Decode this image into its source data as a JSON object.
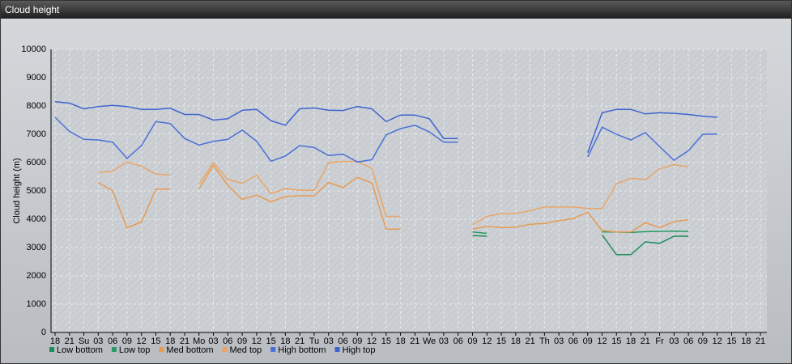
{
  "chart_data": {
    "type": "line",
    "title": "Cloud height",
    "y_label": "Cloud height (m)",
    "categories": [
      "18",
      "21",
      "Su",
      "03",
      "06",
      "09",
      "12",
      "15",
      "18",
      "21",
      "Mo",
      "03",
      "06",
      "09",
      "12",
      "15",
      "18",
      "21",
      "Tu",
      "03",
      "06",
      "09",
      "12",
      "15",
      "18",
      "21",
      "We",
      "03",
      "06",
      "09",
      "12",
      "15",
      "18",
      "21",
      "Th",
      "03",
      "06",
      "09",
      "12",
      "15",
      "18",
      "21",
      "Fr",
      "03",
      "06",
      "09",
      "12",
      "15",
      "18",
      "21"
    ],
    "ylim": [
      0,
      10000
    ],
    "yticks": [
      0,
      1000,
      2000,
      3000,
      4000,
      5000,
      6000,
      7000,
      8000,
      9000,
      10000
    ],
    "grid": true,
    "series": [
      {
        "name": "Low bottom",
        "color": "#1f8a5a",
        "values": [
          null,
          null,
          null,
          null,
          null,
          null,
          null,
          null,
          null,
          null,
          null,
          null,
          null,
          null,
          null,
          null,
          null,
          null,
          null,
          null,
          null,
          null,
          null,
          null,
          null,
          null,
          null,
          null,
          null,
          3420,
          3400,
          null,
          null,
          null,
          null,
          null,
          null,
          null,
          3450,
          2750,
          2750,
          3200,
          3150,
          3400,
          3400,
          null,
          null,
          null,
          null,
          null
        ]
      },
      {
        "name": "Low top",
        "color": "#2a9a66",
        "values": [
          null,
          null,
          null,
          null,
          null,
          null,
          null,
          null,
          null,
          null,
          null,
          null,
          null,
          null,
          null,
          null,
          null,
          null,
          null,
          null,
          null,
          null,
          null,
          null,
          null,
          null,
          null,
          null,
          null,
          3550,
          3500,
          null,
          null,
          null,
          null,
          null,
          null,
          null,
          3550,
          3550,
          3530,
          3560,
          3570,
          3580,
          3570,
          null,
          null,
          null,
          null,
          null
        ]
      },
      {
        "name": "Med bottom",
        "color": "#e89a50",
        "values": [
          null,
          null,
          null,
          5300,
          5000,
          3700,
          3900,
          5060,
          5060,
          null,
          5080,
          5900,
          5200,
          4700,
          4850,
          4620,
          4800,
          4830,
          4830,
          5300,
          5120,
          5480,
          5280,
          3650,
          3650,
          null,
          null,
          null,
          null,
          3650,
          3750,
          3700,
          3720,
          3820,
          3850,
          3950,
          4020,
          4250,
          3600,
          3550,
          3550,
          3880,
          3700,
          3920,
          3980,
          null,
          null,
          null,
          null,
          null
        ]
      },
      {
        "name": "Med top",
        "color": "#eaa468",
        "values": [
          null,
          null,
          null,
          5650,
          5700,
          6020,
          5870,
          5600,
          5560,
          null,
          5250,
          6000,
          5400,
          5270,
          5550,
          4900,
          5080,
          5020,
          5020,
          6000,
          6040,
          6040,
          5800,
          4100,
          4100,
          null,
          null,
          null,
          null,
          3800,
          4100,
          4200,
          4200,
          4300,
          4430,
          4430,
          4430,
          4380,
          4380,
          5250,
          5450,
          5400,
          5780,
          5930,
          5850,
          null,
          null,
          null,
          null,
          null
        ]
      },
      {
        "name": "High bottom",
        "color": "#4a6fd8",
        "values": [
          7600,
          7100,
          6820,
          6800,
          6720,
          6150,
          6600,
          7450,
          7380,
          6850,
          6620,
          6750,
          6820,
          7150,
          6750,
          6050,
          6230,
          6600,
          6530,
          6250,
          6300,
          6020,
          6100,
          6980,
          7200,
          7320,
          7080,
          6720,
          6720,
          null,
          null,
          null,
          null,
          null,
          null,
          null,
          null,
          6200,
          7250,
          7000,
          6800,
          7060,
          6560,
          6080,
          6420,
          7000,
          7010,
          null,
          null,
          null
        ]
      },
      {
        "name": "High top",
        "color": "#3f63d0",
        "values": [
          8150,
          8100,
          7900,
          7980,
          8020,
          7980,
          7880,
          7880,
          7920,
          7700,
          7700,
          7500,
          7550,
          7850,
          7880,
          7480,
          7320,
          7900,
          7930,
          7850,
          7840,
          7980,
          7900,
          7450,
          7680,
          7680,
          7550,
          6850,
          6850,
          null,
          null,
          null,
          null,
          null,
          null,
          null,
          null,
          6350,
          7760,
          7880,
          7880,
          7720,
          7760,
          7740,
          7700,
          7640,
          7600,
          null,
          null,
          null
        ]
      }
    ]
  }
}
